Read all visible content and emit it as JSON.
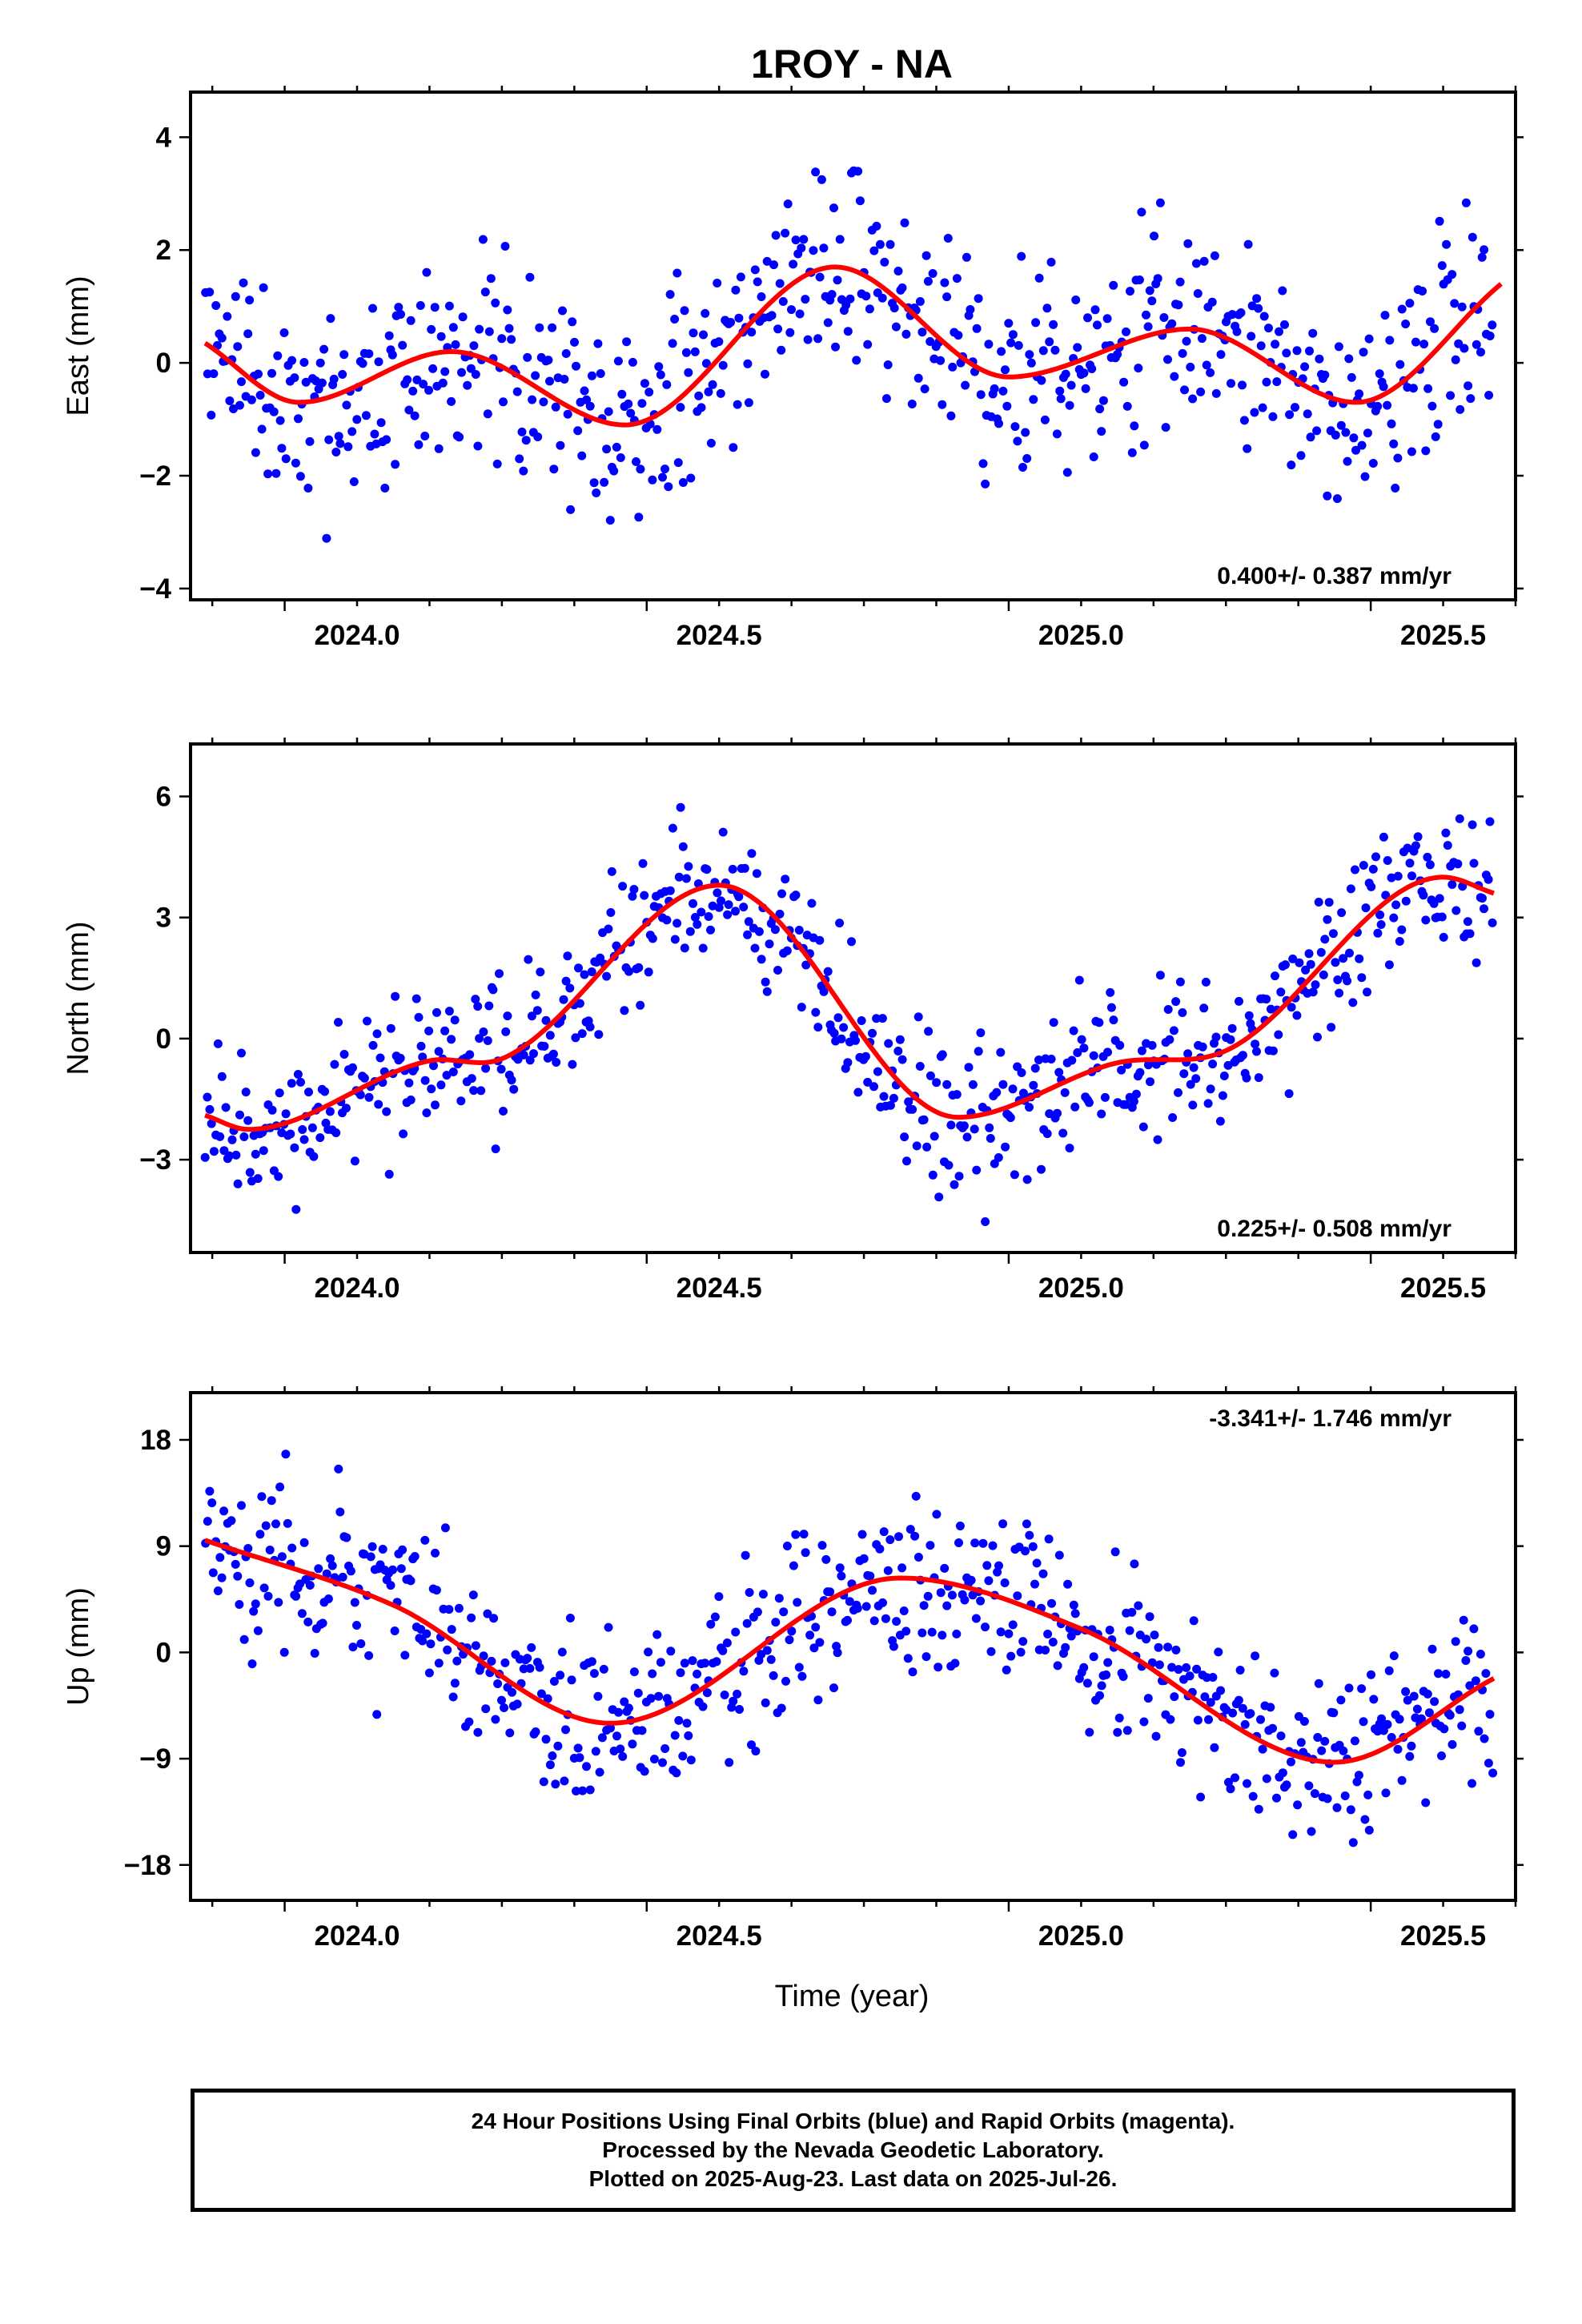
{
  "chart_data": {
    "title": "1ROY - NA",
    "type": "scatter",
    "xlabel": "Time (year)",
    "xlim": [
      2023.77,
      2025.6
    ],
    "x_ticks": [
      "2024.0",
      "2024.5",
      "2025.0",
      "2025.5"
    ],
    "panels": [
      {
        "ylabel": "East (mm)",
        "ylim": [
          -4.2,
          4.8
        ],
        "y_ticks": [
          4,
          2,
          0,
          -2,
          -4
        ],
        "y_tick_labels": [
          "4",
          "2",
          "0",
          "−2",
          "−4"
        ],
        "rate_label": "0.400+/- 0.387 mm/yr",
        "rate_position": "bottom-right",
        "series": [
          {
            "style": "blue dots",
            "color": "#0000ff",
            "noise": 0.9,
            "seed": 11
          },
          {
            "style": "red model curve",
            "color": "#ff0000",
            "x": [
              2023.79,
              2023.92,
              2024.13,
              2024.37,
              2024.66,
              2024.9,
              2025.15,
              2025.38,
              2025.58
            ],
            "y": [
              0.35,
              -0.7,
              0.2,
              -1.1,
              1.7,
              -0.25,
              0.6,
              -0.7,
              1.4
            ]
          }
        ]
      },
      {
        "ylabel": "North (mm)",
        "ylim": [
          -5.3,
          7.3
        ],
        "y_ticks": [
          6,
          3,
          0,
          -3
        ],
        "y_tick_labels": [
          "6",
          "3",
          "0",
          "−3"
        ],
        "rate_label": "0.225+/- 0.508 mm/yr",
        "rate_position": "bottom-right",
        "series": [
          {
            "style": "blue dots",
            "color": "#0000ff",
            "noise": 0.9,
            "seed": 23
          },
          {
            "style": "red model curve",
            "color": "#ff0000",
            "x": [
              2023.79,
              2023.85,
              2024.1,
              2024.2,
              2024.5,
              2024.83,
              2025.05,
              2025.2,
              2025.5,
              2025.57
            ],
            "y": [
              -1.9,
              -2.25,
              -0.55,
              -0.5,
              3.8,
              -1.95,
              -0.6,
              -0.3,
              4.0,
              3.6
            ]
          }
        ]
      },
      {
        "ylabel": "Up (mm)",
        "ylim": [
          -21,
          22
        ],
        "y_ticks": [
          18,
          9,
          0,
          -9,
          -18
        ],
        "y_tick_labels": [
          "18",
          "9",
          "0",
          "−9",
          "−18"
        ],
        "rate_label": "-3.341+/- 1.746 mm/yr",
        "rate_position": "top-right",
        "series": [
          {
            "style": "blue dots",
            "color": "#0000ff",
            "noise": 3.6,
            "seed": 37
          },
          {
            "style": "red model curve",
            "color": "#ff0000",
            "x": [
              2023.79,
              2024.05,
              2024.35,
              2024.75,
              2025.0,
              2025.35,
              2025.57
            ],
            "y": [
              9.5,
              4.0,
              -6.0,
              6.3,
              2.0,
              -9.3,
              -2.2
            ]
          }
        ]
      }
    ]
  },
  "footer": {
    "line1": "24 Hour Positions Using Final Orbits (blue) and Rapid Orbits (magenta).",
    "line2": "Processed by the Nevada Geodetic Laboratory.",
    "line3": "Plotted on 2025-Aug-23. Last data on 2025-Jul-26."
  }
}
